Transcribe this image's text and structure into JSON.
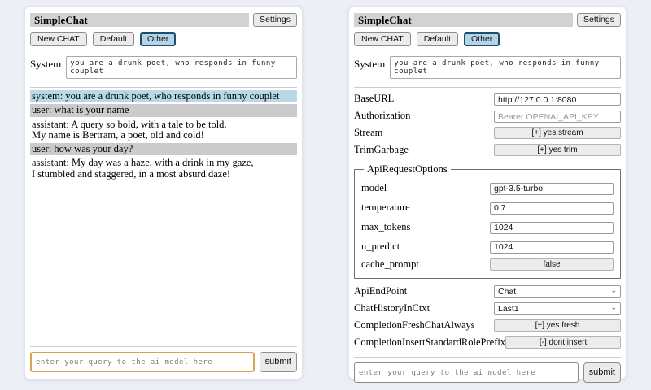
{
  "app": {
    "title": "SimpleChat",
    "settings_label": "Settings",
    "toolbar": {
      "new_chat": "New CHAT",
      "default": "Default",
      "other": "Other"
    },
    "active_session": "Other",
    "system_label": "System",
    "system_prompt": "you are a drunk poet, who responds in funny couplet",
    "query_placeholder": "enter your query to the ai model here",
    "submit_label": "submit",
    "colors": {
      "page_bg": "#edeff7",
      "titlebar_bg": "#d2d2d2",
      "active_tab_bg": "#b5d4e5",
      "active_tab_border": "#1d4e70",
      "system_msg_bg": "#bad9e7",
      "user_msg_bg": "#cbcbcb",
      "query_highlight_border": "#d9a452"
    }
  },
  "chat": {
    "messages": [
      {
        "role": "system",
        "text": "system: you are a drunk poet, who responds in funny couplet"
      },
      {
        "role": "user",
        "text": "user: what is your name"
      },
      {
        "role": "assistant",
        "text": "assistant: A query so bold, with a tale to be told,\nMy name is Bertram, a poet, old and cold!"
      },
      {
        "role": "user",
        "text": "user: how was your day?"
      },
      {
        "role": "assistant",
        "text": "assistant: My day was a haze, with a drink in my gaze,\nI stumbled and staggered, in a most absurd daze!"
      }
    ]
  },
  "settings": {
    "baseurl": {
      "label": "BaseURL",
      "value": "http://127.0.0.1:8080"
    },
    "authorization": {
      "label": "Authorization",
      "placeholder": "Bearer OPENAI_API_KEY"
    },
    "stream": {
      "label": "Stream",
      "value": "[+] yes stream"
    },
    "trimgarbage": {
      "label": "TrimGarbage",
      "value": "[+] yes trim"
    },
    "api_request_options": {
      "legend": "ApiRequestOptions",
      "model": {
        "label": "model",
        "value": "gpt-3.5-turbo"
      },
      "temperature": {
        "label": "temperature",
        "value": "0.7"
      },
      "max_tokens": {
        "label": "max_tokens",
        "value": "1024"
      },
      "n_predict": {
        "label": "n_predict",
        "value": "1024"
      },
      "cache_prompt": {
        "label": "cache_prompt",
        "value": "false"
      }
    },
    "api_endpoint": {
      "label": "ApiEndPoint",
      "value": "Chat"
    },
    "chat_history_in_ctxt": {
      "label": "ChatHistoryInCtxt",
      "value": "Last1"
    },
    "completion_fresh_chat_always": {
      "label": "CompletionFreshChatAlways",
      "value": "[+] yes fresh"
    },
    "completion_insert_standard_role_prefix": {
      "label": "CompletionInsertStandardRolePrefix",
      "value": "[-] dont insert"
    }
  }
}
